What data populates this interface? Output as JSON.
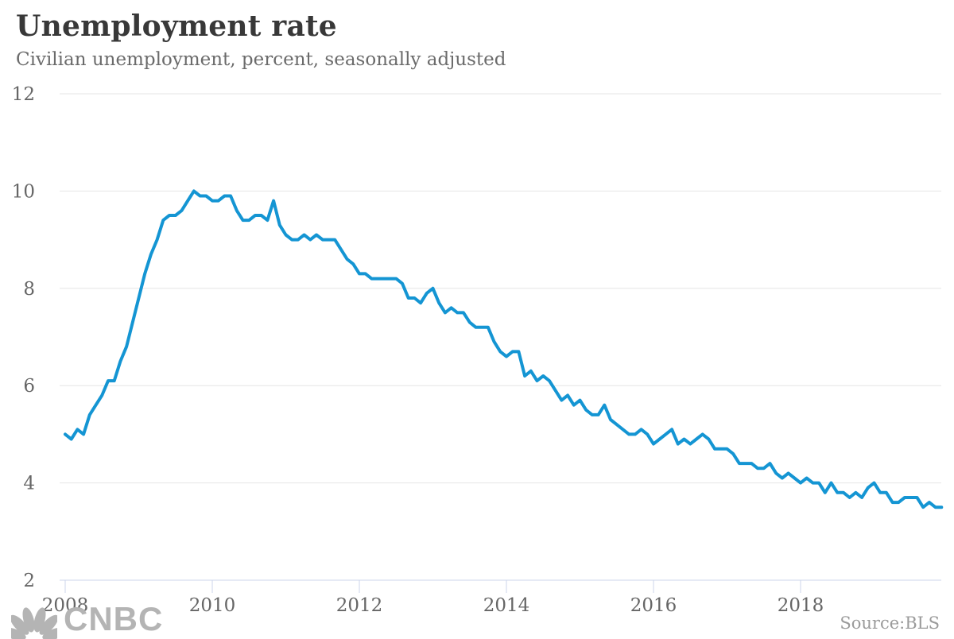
{
  "header": {
    "title": "Unemployment rate",
    "subtitle": "Civilian unemployment, percent, seasonally adjusted"
  },
  "footer": {
    "source_label": "Source:BLS",
    "logo_text": "CNBC",
    "logo_icon": "cnbc-peacock-icon"
  },
  "colors": {
    "line": "#1495d3",
    "gridline": "#e6e6e6",
    "axis": "#ccd6eb",
    "axis_label": "#666666",
    "title": "#383838",
    "subtitle": "#6b6b6b",
    "source": "#9b9b9b",
    "logo": "#b4b4b4"
  },
  "chart_data": {
    "type": "line",
    "title": "Unemployment rate",
    "subtitle": "Civilian unemployment, percent, seasonally adjusted",
    "ylabel": "percent",
    "x_start": "2008-01",
    "x_interval": "monthly",
    "x_end": "2019-12",
    "ylim": [
      2,
      12
    ],
    "y_ticks": [
      2,
      4,
      6,
      8,
      10,
      12
    ],
    "x_ticks": [
      2008,
      2010,
      2012,
      2014,
      2016,
      2018
    ],
    "grid": "horizontal",
    "legend": "none",
    "series": [
      {
        "name": "Civilian unemployment rate",
        "values": [
          5.0,
          4.9,
          5.1,
          5.0,
          5.4,
          5.6,
          5.8,
          6.1,
          6.1,
          6.5,
          6.8,
          7.3,
          7.8,
          8.3,
          8.7,
          9.0,
          9.4,
          9.5,
          9.5,
          9.6,
          9.8,
          10.0,
          9.9,
          9.9,
          9.8,
          9.8,
          9.9,
          9.9,
          9.6,
          9.4,
          9.4,
          9.5,
          9.5,
          9.4,
          9.8,
          9.3,
          9.1,
          9.0,
          9.0,
          9.1,
          9.0,
          9.1,
          9.0,
          9.0,
          9.0,
          8.8,
          8.6,
          8.5,
          8.3,
          8.3,
          8.2,
          8.2,
          8.2,
          8.2,
          8.2,
          8.1,
          7.8,
          7.8,
          7.7,
          7.9,
          8.0,
          7.7,
          7.5,
          7.6,
          7.5,
          7.5,
          7.3,
          7.2,
          7.2,
          7.2,
          6.9,
          6.7,
          6.6,
          6.7,
          6.7,
          6.2,
          6.3,
          6.1,
          6.2,
          6.1,
          5.9,
          5.7,
          5.8,
          5.6,
          5.7,
          5.5,
          5.4,
          5.4,
          5.6,
          5.3,
          5.2,
          5.1,
          5.0,
          5.0,
          5.1,
          5.0,
          4.8,
          4.9,
          5.0,
          5.1,
          4.8,
          4.9,
          4.8,
          4.9,
          5.0,
          4.9,
          4.7,
          4.7,
          4.7,
          4.6,
          4.4,
          4.4,
          4.4,
          4.3,
          4.3,
          4.4,
          4.2,
          4.1,
          4.2,
          4.1,
          4.0,
          4.1,
          4.0,
          4.0,
          3.8,
          4.0,
          3.8,
          3.8,
          3.7,
          3.8,
          3.7,
          3.9,
          4.0,
          3.8,
          3.8,
          3.6,
          3.6,
          3.7,
          3.7,
          3.7,
          3.5,
          3.6,
          3.5,
          3.5
        ]
      }
    ]
  }
}
